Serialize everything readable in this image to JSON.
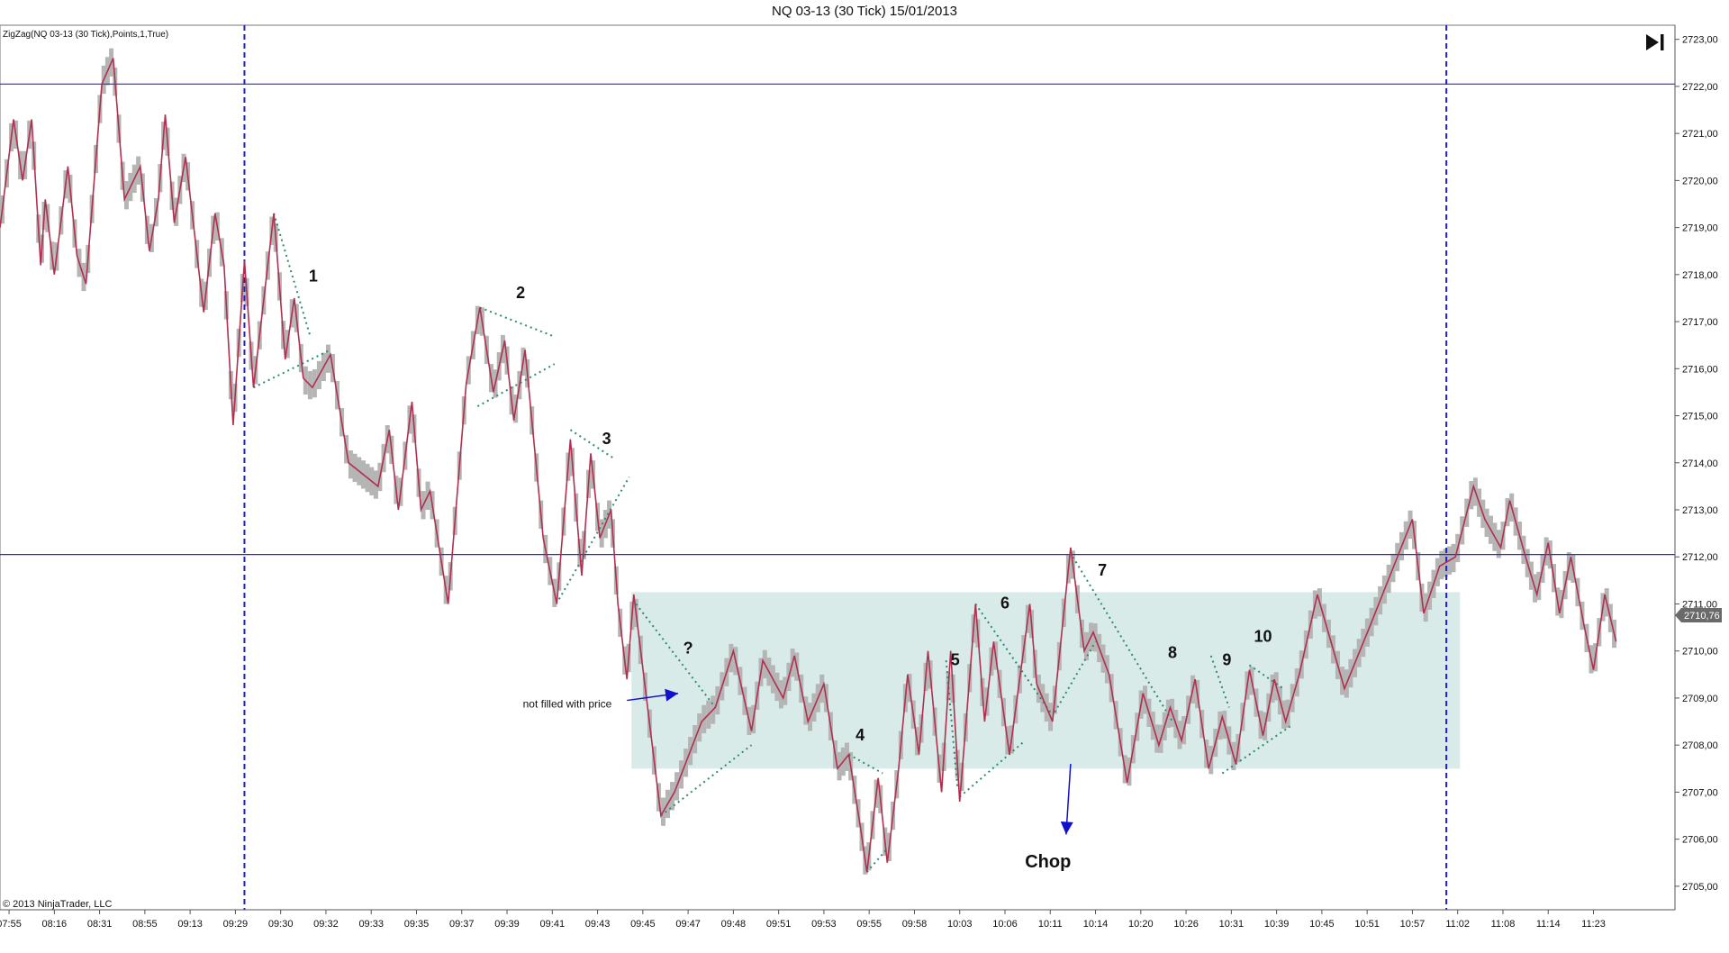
{
  "chart_data": {
    "type": "line",
    "title": "NQ 03-13 (30 Tick)  15/01/2013",
    "indicator": "ZigZag(NQ 03-13 (30 Tick),Points,1,True)",
    "copyright": "© 2013 NinjaTrader, LLC",
    "ylim": [
      2704.5,
      2723.3
    ],
    "y_ticks": [
      "2705,00",
      "2706,00",
      "2707,00",
      "2708,00",
      "2709,00",
      "2710,00",
      "2711,00",
      "2712,00",
      "2713,00",
      "2714,00",
      "2715,00",
      "2716,00",
      "2717,00",
      "2718,00",
      "2719,00",
      "2720,00",
      "2721,00",
      "2722,00",
      "2723,00"
    ],
    "y_tick_values": [
      2705,
      2706,
      2707,
      2708,
      2709,
      2710,
      2711,
      2712,
      2713,
      2714,
      2715,
      2716,
      2717,
      2718,
      2719,
      2720,
      2721,
      2722,
      2723
    ],
    "x_ticks": [
      "07:55",
      "08:16",
      "08:31",
      "08:55",
      "09:13",
      "09:29",
      "09:30",
      "09:32",
      "09:33",
      "09:35",
      "09:37",
      "09:39",
      "09:41",
      "09:43",
      "09:45",
      "09:47",
      "09:48",
      "09:51",
      "09:53",
      "09:55",
      "09:58",
      "10:03",
      "10:06",
      "10:11",
      "10:14",
      "10:20",
      "10:26",
      "10:31",
      "10:39",
      "10:45",
      "10:51",
      "10:57",
      "11:02",
      "11:08",
      "11:14",
      "11:23"
    ],
    "x_range": [
      0,
      37
    ],
    "x_tick_positions": [
      0.2,
      1.2,
      2.2,
      3.2,
      4.2,
      5.2,
      6.2,
      7.2,
      8.2,
      9.2,
      10.2,
      11.2,
      12.2,
      13.2,
      14.2,
      15.2,
      16.2,
      17.2,
      18.2,
      19.2,
      20.2,
      21.2,
      22.2,
      23.2,
      24.2,
      25.2,
      26.2,
      27.2,
      28.2,
      29.2,
      30.2,
      31.2,
      32.2,
      33.2,
      34.2,
      35.2
    ],
    "current_price": "2710,76",
    "current_price_value": 2710.76,
    "horizontal_lines": [
      2722.05,
      2712.05
    ],
    "vertical_lines": [
      5.4,
      31.95
    ],
    "chop_box": {
      "x_start": 13.95,
      "x_end": 32.25,
      "y_low": 2707.5,
      "y_high": 2711.25
    },
    "zigzag": [
      [
        0.0,
        2719
      ],
      [
        0.3,
        2721.3
      ],
      [
        0.5,
        2720
      ],
      [
        0.7,
        2721.3
      ],
      [
        0.9,
        2718.2
      ],
      [
        1.0,
        2719.6
      ],
      [
        1.2,
        2718
      ],
      [
        1.5,
        2720.3
      ],
      [
        1.7,
        2718.4
      ],
      [
        1.9,
        2717.8
      ],
      [
        2.25,
        2722.05
      ],
      [
        2.5,
        2722.6
      ],
      [
        2.75,
        2719.6
      ],
      [
        3.1,
        2720.3
      ],
      [
        3.3,
        2718.5
      ],
      [
        3.5,
        2719.6
      ],
      [
        3.65,
        2721.4
      ],
      [
        3.85,
        2719.1
      ],
      [
        4.1,
        2720.5
      ],
      [
        4.5,
        2717.2
      ],
      [
        4.75,
        2719.3
      ],
      [
        4.95,
        2718.2
      ],
      [
        5.15,
        2714.8
      ],
      [
        5.4,
        2718.3
      ],
      [
        5.6,
        2715.6
      ],
      [
        6.05,
        2719.3
      ],
      [
        6.3,
        2716.2
      ],
      [
        6.5,
        2717.5
      ],
      [
        6.7,
        2715.8
      ],
      [
        6.9,
        2715.6
      ],
      [
        7.3,
        2716.3
      ],
      [
        7.7,
        2714
      ],
      [
        8.35,
        2713.5
      ],
      [
        8.6,
        2714.7
      ],
      [
        8.8,
        2713
      ],
      [
        9.1,
        2715.3
      ],
      [
        9.3,
        2713
      ],
      [
        9.5,
        2713.4
      ],
      [
        9.9,
        2711
      ],
      [
        10.3,
        2715.7
      ],
      [
        10.6,
        2717.3
      ],
      [
        10.9,
        2715.5
      ],
      [
        11.15,
        2716.6
      ],
      [
        11.35,
        2714.9
      ],
      [
        11.6,
        2716.4
      ],
      [
        12.0,
        2712.4
      ],
      [
        12.3,
        2711
      ],
      [
        12.6,
        2714.5
      ],
      [
        12.85,
        2711.6
      ],
      [
        13.05,
        2714.2
      ],
      [
        13.25,
        2712.4
      ],
      [
        13.5,
        2713
      ],
      [
        13.65,
        2711
      ],
      [
        13.85,
        2709.4
      ],
      [
        14.0,
        2711.2
      ],
      [
        14.6,
        2706.5
      ],
      [
        14.9,
        2707
      ],
      [
        15.5,
        2708.5
      ],
      [
        15.8,
        2708.8
      ],
      [
        16.2,
        2710
      ],
      [
        16.6,
        2708.3
      ],
      [
        16.85,
        2709.8
      ],
      [
        17.3,
        2709
      ],
      [
        17.55,
        2709.9
      ],
      [
        17.85,
        2708.5
      ],
      [
        18.2,
        2709.3
      ],
      [
        18.5,
        2707.5
      ],
      [
        18.75,
        2707.8
      ],
      [
        19.0,
        2706.3
      ],
      [
        19.15,
        2705.3
      ],
      [
        19.4,
        2707.3
      ],
      [
        19.6,
        2705.5
      ],
      [
        19.85,
        2707.5
      ],
      [
        20.05,
        2709.5
      ],
      [
        20.3,
        2707.8
      ],
      [
        20.5,
        2710
      ],
      [
        20.8,
        2707
      ],
      [
        21.0,
        2710
      ],
      [
        21.2,
        2706.8
      ],
      [
        21.55,
        2711
      ],
      [
        21.75,
        2708.5
      ],
      [
        21.95,
        2710.2
      ],
      [
        22.3,
        2707.8
      ],
      [
        22.75,
        2711
      ],
      [
        22.9,
        2709.3
      ],
      [
        23.25,
        2708.5
      ],
      [
        23.65,
        2712.2
      ],
      [
        23.95,
        2710
      ],
      [
        24.15,
        2710.4
      ],
      [
        24.5,
        2709.5
      ],
      [
        24.9,
        2707.2
      ],
      [
        25.25,
        2709.1
      ],
      [
        25.6,
        2708
      ],
      [
        25.85,
        2708.8
      ],
      [
        26.1,
        2708.1
      ],
      [
        26.4,
        2709.4
      ],
      [
        26.7,
        2707.5
      ],
      [
        27.0,
        2708.6
      ],
      [
        27.3,
        2707.6
      ],
      [
        27.6,
        2709.6
      ],
      [
        27.9,
        2708.2
      ],
      [
        28.15,
        2709.4
      ],
      [
        28.4,
        2708.5
      ],
      [
        28.7,
        2709.5
      ],
      [
        29.1,
        2711.2
      ],
      [
        29.7,
        2709.2
      ],
      [
        30.25,
        2710.5
      ],
      [
        31.2,
        2712.8
      ],
      [
        31.45,
        2710.8
      ],
      [
        31.8,
        2711.8
      ],
      [
        32.15,
        2712
      ],
      [
        32.55,
        2713.5
      ],
      [
        32.8,
        2712.8
      ],
      [
        33.15,
        2712.2
      ],
      [
        33.35,
        2713.2
      ],
      [
        33.7,
        2712
      ],
      [
        33.95,
        2711.2
      ],
      [
        34.2,
        2712.3
      ],
      [
        34.45,
        2710.8
      ],
      [
        34.7,
        2712
      ],
      [
        35.0,
        2710.5
      ],
      [
        35.2,
        2709.6
      ],
      [
        35.45,
        2711.2
      ],
      [
        35.7,
        2710.2
      ]
    ],
    "trendlines": [
      {
        "from": [
          6.05,
          2719.3
        ],
        "to": [
          6.85,
          2716.7
        ]
      },
      {
        "from": [
          5.6,
          2715.6
        ],
        "to": [
          7.3,
          2716.4
        ]
      },
      {
        "from": [
          10.6,
          2717.3
        ],
        "to": [
          12.2,
          2716.7
        ]
      },
      {
        "from": [
          10.55,
          2715.2
        ],
        "to": [
          12.25,
          2716.1
        ]
      },
      {
        "from": [
          12.6,
          2714.7
        ],
        "to": [
          13.55,
          2714.1
        ]
      },
      {
        "from": [
          12.35,
          2711.1
        ],
        "to": [
          13.9,
          2713.7
        ]
      },
      {
        "from": [
          14.05,
          2711
        ],
        "to": [
          15.8,
          2708.8
        ]
      },
      {
        "from": [
          14.6,
          2706.5
        ],
        "to": [
          16.6,
          2708
        ]
      },
      {
        "from": [
          18.75,
          2707.8
        ],
        "to": [
          19.5,
          2707.4
        ]
      },
      {
        "from": [
          19.15,
          2705.3
        ],
        "to": [
          19.6,
          2705.8
        ]
      },
      {
        "from": [
          20.9,
          2709.8
        ],
        "to": [
          21.15,
          2707.1
        ]
      },
      {
        "from": [
          21.2,
          2706.9
        ],
        "to": [
          22.65,
          2708.1
        ]
      },
      {
        "from": [
          21.55,
          2711
        ],
        "to": [
          23.2,
          2708.7
        ]
      },
      {
        "from": [
          23.3,
          2708.7
        ],
        "to": [
          24.2,
          2710.2
        ]
      },
      {
        "from": [
          23.7,
          2712
        ],
        "to": [
          25.9,
          2708.5
        ]
      },
      {
        "from": [
          26.75,
          2709.9
        ],
        "to": [
          27.15,
          2708.8
        ]
      },
      {
        "from": [
          27.0,
          2707.4
        ],
        "to": [
          28.5,
          2708.4
        ]
      },
      {
        "from": [
          27.6,
          2709.7
        ],
        "to": [
          28.35,
          2709.2
        ]
      }
    ],
    "arrows": [
      {
        "from": [
          13.85,
          2708.95
        ],
        "to": [
          14.98,
          2709.1
        ]
      },
      {
        "from": [
          23.65,
          2707.6
        ],
        "to": [
          23.55,
          2706.1
        ]
      }
    ],
    "annotations": [
      {
        "text": "1",
        "x": 6.92,
        "y": 2717.85,
        "cls": "ann-num"
      },
      {
        "text": "2",
        "x": 11.5,
        "y": 2717.5,
        "cls": "ann-num"
      },
      {
        "text": "3",
        "x": 13.4,
        "y": 2714.4,
        "cls": "ann-num"
      },
      {
        "text": "?",
        "x": 15.2,
        "y": 2709.95,
        "cls": "ann-num"
      },
      {
        "text": "4",
        "x": 19.0,
        "y": 2708.1,
        "cls": "ann-num"
      },
      {
        "text": "5",
        "x": 21.1,
        "y": 2709.7,
        "cls": "ann-num"
      },
      {
        "text": "6",
        "x": 22.2,
        "y": 2710.9,
        "cls": "ann-num"
      },
      {
        "text": "7",
        "x": 24.35,
        "y": 2711.6,
        "cls": "ann-num"
      },
      {
        "text": "8",
        "x": 25.9,
        "y": 2709.85,
        "cls": "ann-num"
      },
      {
        "text": "9",
        "x": 27.1,
        "y": 2709.7,
        "cls": "ann-num"
      },
      {
        "text": "10",
        "x": 27.9,
        "y": 2710.2,
        "cls": "ann-num"
      },
      {
        "text": "not filled with price",
        "x": 11.55,
        "y": 2708.8,
        "cls": "ann-note"
      },
      {
        "text": "Chop",
        "x": 23.15,
        "y": 2705.4,
        "cls": "ann-chop"
      }
    ],
    "colors": {
      "zigzag": "#b03050",
      "price_bars": "#b5b5b5",
      "trendline": "#2e8b6e",
      "session_lines": "#1f1fcc",
      "level_lines": "#2a2ad0",
      "chop_box": "#c8e2df",
      "arrow": "#1010d0",
      "price_badge": "#6a6a6a"
    },
    "grid": false,
    "legend": "none"
  },
  "toolbar": {
    "jump_to_end_icon": "skip-to-end-icon"
  }
}
